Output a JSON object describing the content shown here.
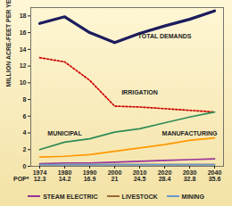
{
  "chart_data": {
    "type": "line",
    "y_label": "MILLION ACRE-FEET PER YEAR",
    "x": [
      "1974",
      "1980",
      "1990",
      "2000",
      "2010",
      "2020",
      "2030",
      "2040"
    ],
    "population": {
      "label": "POP*",
      "values": [
        12.3,
        14.2,
        16.9,
        21,
        24.5,
        28.4,
        32.8,
        35.6
      ]
    },
    "series": [
      {
        "name": "TOTAL DEMANDS",
        "color": "#1c1c5e",
        "line_style": "solid",
        "values": [
          17.1,
          17.9,
          16.0,
          14.8,
          15.9,
          16.8,
          17.6,
          18.6
        ]
      },
      {
        "name": "IRRIGATION",
        "color": "#cc0000",
        "line_style": "dotted",
        "values": [
          13.0,
          12.5,
          10.3,
          7.2,
          7.1,
          6.9,
          6.7,
          6.5
        ]
      },
      {
        "name": "MUNICIPAL",
        "color": "#2e8b57",
        "line_style": "solid",
        "values": [
          2.0,
          2.9,
          3.3,
          4.1,
          4.5,
          5.2,
          5.9,
          6.5
        ]
      },
      {
        "name": "MANUFACTURING",
        "color": "#ff9900",
        "line_style": "solid",
        "values": [
          1.1,
          1.2,
          1.4,
          1.8,
          2.2,
          2.6,
          3.1,
          3.4
        ]
      },
      {
        "name": "STEAM ELECTRIC",
        "color": "#993399",
        "line_style": "solid",
        "values": [
          0.3,
          0.4,
          0.4,
          0.5,
          0.6,
          0.7,
          0.8,
          0.9
        ]
      },
      {
        "name": "LIVESTOCK",
        "color": "#996633",
        "line_style": "solid",
        "values": [
          0.2,
          0.2,
          0.2,
          0.2,
          0.2,
          0.2,
          0.2,
          0.2
        ]
      },
      {
        "name": "MINING",
        "color": "#6699cc",
        "line_style": "solid",
        "values": [
          0.2,
          0.2,
          0.2,
          0.2,
          0.2,
          0.2,
          0.2,
          0.2
        ]
      }
    ],
    "ylim": [
      0,
      19
    ],
    "yticks": [
      0,
      2,
      4,
      6,
      8,
      10,
      12,
      14,
      16,
      18
    ],
    "grid": false,
    "legend": "bottom"
  }
}
